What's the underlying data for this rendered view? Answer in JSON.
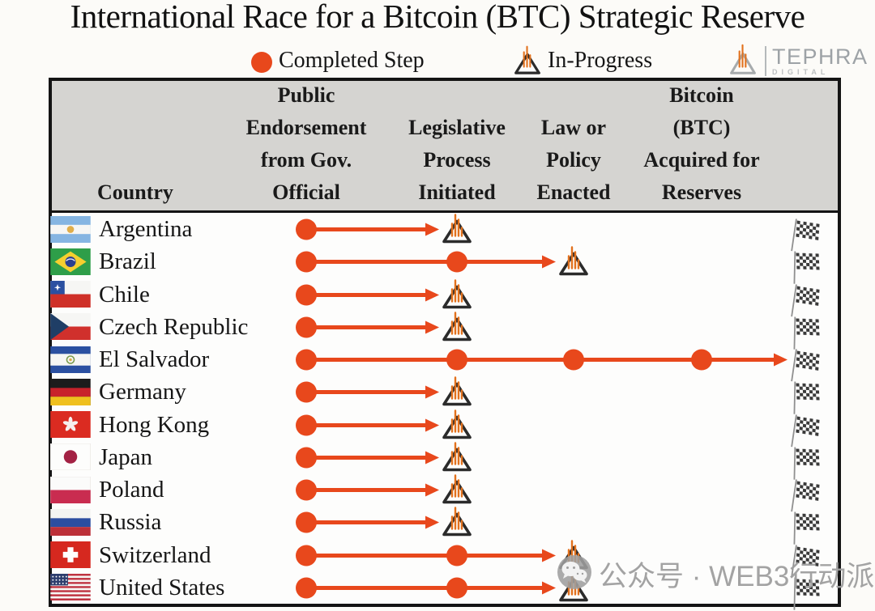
{
  "title": "International Race for a Bitcoin (BTC) Strategic Reserve",
  "legend": {
    "completed": "Completed Step",
    "in_progress": "In-Progress"
  },
  "logo": {
    "brand": "TEPHRA",
    "sub": "DIGITAL"
  },
  "watermark": "公众号 · WEB3行动派",
  "colors": {
    "accent": "#E8481C",
    "flame": "#E2711D",
    "header_bg": "#D5D4D1",
    "border": "#141414",
    "triangle_stroke": "#2B2B2B",
    "logo_gray": "#A7ABAD",
    "watermark_gray": "#9E9E9E",
    "checker_dark": "#3A3A3A"
  },
  "table": {
    "country_header": "Country",
    "step_headers": [
      {
        "lines": [
          "Public",
          "Endorsement",
          "from Gov.",
          "Official"
        ]
      },
      {
        "lines": [
          "Legislative",
          "Process",
          "Initiated"
        ]
      },
      {
        "lines": [
          "Law or",
          "Policy",
          "Enacted"
        ]
      },
      {
        "lines": [
          "Bitcoin",
          "(BTC)",
          "Acquired for",
          "Reserves"
        ]
      }
    ],
    "rows": [
      {
        "country": "Argentina",
        "flag": "argentina",
        "completed_steps": 1,
        "in_progress_step": 2,
        "reached_finish": false
      },
      {
        "country": "Brazil",
        "flag": "brazil",
        "completed_steps": 2,
        "in_progress_step": 3,
        "reached_finish": false
      },
      {
        "country": "Chile",
        "flag": "chile",
        "completed_steps": 1,
        "in_progress_step": 2,
        "reached_finish": false
      },
      {
        "country": "Czech Republic",
        "flag": "czech-republic",
        "completed_steps": 1,
        "in_progress_step": 2,
        "reached_finish": false
      },
      {
        "country": "El Salvador",
        "flag": "el-salvador",
        "completed_steps": 4,
        "in_progress_step": null,
        "reached_finish": true
      },
      {
        "country": "Germany",
        "flag": "germany",
        "completed_steps": 1,
        "in_progress_step": 2,
        "reached_finish": false
      },
      {
        "country": "Hong Kong",
        "flag": "hong-kong",
        "completed_steps": 1,
        "in_progress_step": 2,
        "reached_finish": false
      },
      {
        "country": "Japan",
        "flag": "japan",
        "completed_steps": 1,
        "in_progress_step": 2,
        "reached_finish": false
      },
      {
        "country": "Poland",
        "flag": "poland",
        "completed_steps": 1,
        "in_progress_step": 2,
        "reached_finish": false
      },
      {
        "country": "Russia",
        "flag": "russia",
        "completed_steps": 1,
        "in_progress_step": 2,
        "reached_finish": false
      },
      {
        "country": "Switzerland",
        "flag": "switzerland",
        "completed_steps": 2,
        "in_progress_step": 3,
        "reached_finish": false
      },
      {
        "country": "United States",
        "flag": "united-states",
        "completed_steps": 2,
        "in_progress_step": 3,
        "reached_finish": false
      }
    ]
  },
  "chart_data": {
    "type": "table",
    "title": "International Race for a Bitcoin (BTC) Strategic Reserve",
    "legend": [
      "Completed Step",
      "In-Progress"
    ],
    "columns": [
      "Country",
      "Public Endorsement from Gov. Official",
      "Legislative Process Initiated",
      "Law or Policy Enacted",
      "Bitcoin (BTC) Acquired for Reserves"
    ],
    "rows": [
      [
        "Argentina",
        "completed",
        "in-progress",
        "",
        ""
      ],
      [
        "Brazil",
        "completed",
        "completed",
        "in-progress",
        ""
      ],
      [
        "Chile",
        "completed",
        "in-progress",
        "",
        ""
      ],
      [
        "Czech Republic",
        "completed",
        "in-progress",
        "",
        ""
      ],
      [
        "El Salvador",
        "completed",
        "completed",
        "completed",
        "completed"
      ],
      [
        "Germany",
        "completed",
        "in-progress",
        "",
        ""
      ],
      [
        "Hong Kong",
        "completed",
        "in-progress",
        "",
        ""
      ],
      [
        "Japan",
        "completed",
        "in-progress",
        "",
        ""
      ],
      [
        "Poland",
        "completed",
        "in-progress",
        "",
        ""
      ],
      [
        "Russia",
        "completed",
        "in-progress",
        "",
        ""
      ],
      [
        "Switzerland",
        "completed",
        "completed",
        "in-progress",
        ""
      ],
      [
        "United States",
        "completed",
        "completed",
        "in-progress",
        ""
      ]
    ]
  }
}
